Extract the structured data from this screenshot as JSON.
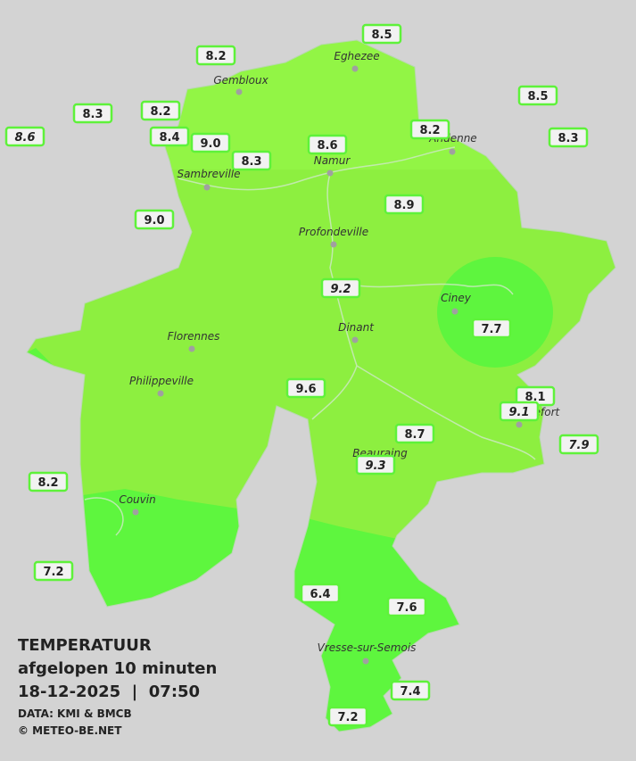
{
  "title": "TEMPERATUUR",
  "subtitle": "afgelopen 10 minuten",
  "timestamp": "18-12-2025  |  07:50",
  "source": "DATA: KMI & BMCB",
  "copyright": "© METEO-BE.NET",
  "cities": [
    "Eghezee",
    "Gembloux",
    "Andenne",
    "Namur",
    "Sambreville",
    "Profondeville",
    "Ciney",
    "Dinant",
    "Florennes",
    "Philippeville",
    "Couvin",
    "Vresse-sur-Semois",
    "Rochefort",
    "Beauraing"
  ],
  "stations": [
    "8.5",
    "8.2",
    "8.5",
    "8.3",
    "8.2",
    "8.6",
    "8.4",
    "9.0",
    "8.3",
    "8.6",
    "8.2",
    "8.3",
    "8.9",
    "9.0",
    "9.2",
    "7.7",
    "9.6",
    "8.1",
    "9.1",
    "8.7",
    "7.9",
    "9.3",
    "8.2",
    "7.2",
    "6.4",
    "7.6",
    "7.4",
    "7.2"
  ]
}
